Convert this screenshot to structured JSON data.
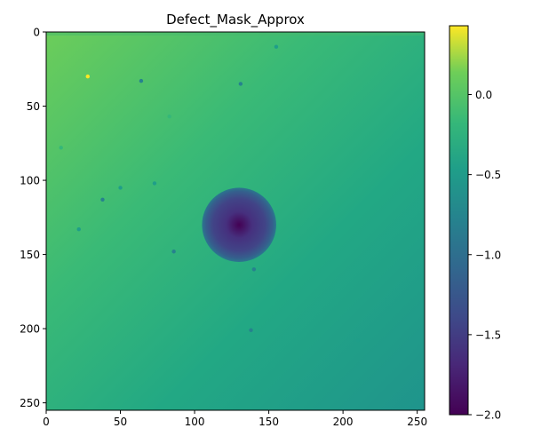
{
  "chart_data": {
    "type": "heatmap",
    "title": "Defect_Mask_Approx",
    "xlabel": "",
    "ylabel": "",
    "xlim": [
      0,
      255
    ],
    "ylim": [
      255,
      0
    ],
    "x_ticks": [
      0,
      50,
      100,
      150,
      200,
      250
    ],
    "y_ticks": [
      0,
      50,
      100,
      150,
      200,
      250
    ],
    "colormap": "viridis",
    "colorbar": {
      "range": [
        -2.0,
        0.43
      ],
      "ticks": [
        0.0,
        -0.5,
        -1.0,
        -1.5,
        -2.0
      ],
      "tick_labels": [
        "0.0",
        "−0.5",
        "−1.0",
        "−1.5",
        "−2.0"
      ]
    },
    "field": {
      "gradient_corners": {
        "top_left": -0.05,
        "top_right": -0.55,
        "bottom_left": -0.4,
        "bottom_right": -0.75
      },
      "defect": {
        "center": [
          130,
          130
        ],
        "radius": 25,
        "center_value": -2.0,
        "rim_value": -1.25
      },
      "speckles": [
        {
          "x": 28,
          "y": 30,
          "value": 0.3
        },
        {
          "x": 64,
          "y": 33,
          "value": -0.75
        },
        {
          "x": 131,
          "y": 35,
          "value": -0.7
        },
        {
          "x": 83,
          "y": 57,
          "value": -0.1
        },
        {
          "x": 10,
          "y": 78,
          "value": -0.05
        },
        {
          "x": 50,
          "y": 105,
          "value": -0.45
        },
        {
          "x": 73,
          "y": 102,
          "value": -0.45
        },
        {
          "x": 38,
          "y": 113,
          "value": -0.7
        },
        {
          "x": 22,
          "y": 133,
          "value": -0.4
        },
        {
          "x": 86,
          "y": 148,
          "value": -0.7
        },
        {
          "x": 140,
          "y": 160,
          "value": -0.8
        },
        {
          "x": 138,
          "y": 201,
          "value": -0.7
        },
        {
          "x": 210,
          "y": 208,
          "value": -0.55
        },
        {
          "x": 155,
          "y": 10,
          "value": -0.6
        }
      ]
    }
  }
}
